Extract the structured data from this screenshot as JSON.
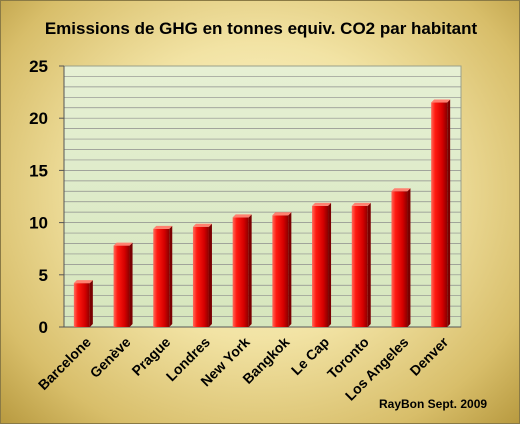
{
  "chart_data": {
    "type": "bar",
    "title": "Emissions de GHG en tonnes equiv. CO2 par habitant",
    "categories": [
      "Barcelone",
      "Genève",
      "Prague",
      "Londres",
      "New York",
      "Bangkok",
      "Le Cap",
      "Toronto",
      "Los Angeles",
      "Denver"
    ],
    "values": [
      4.2,
      7.8,
      9.4,
      9.6,
      10.5,
      10.7,
      11.6,
      11.6,
      13.0,
      21.5
    ],
    "ylim": [
      0,
      25
    ],
    "yticks": [
      "0",
      "5",
      "10",
      "15",
      "20",
      "25"
    ],
    "grid": true,
    "bar_color": "#e00000",
    "plot_background": "#dfeccc",
    "xlabel": "",
    "ylabel": ""
  },
  "credit": "RayBon  Sept. 2009"
}
